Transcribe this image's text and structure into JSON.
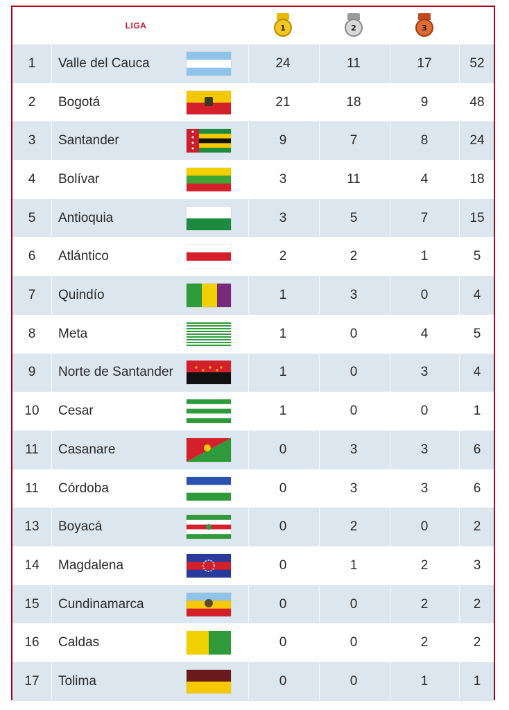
{
  "header": {
    "liga_label": "LIGA",
    "medals": [
      {
        "name": "gold-medal-icon",
        "number": "1",
        "ribbon": "#e9b800",
        "disc": "#f3c623",
        "border": "#b88a00"
      },
      {
        "name": "silver-medal-icon",
        "number": "2",
        "ribbon": "#9a9a9a",
        "disc": "#d8d8d8",
        "border": "#8a8a8a"
      },
      {
        "name": "bronze-medal-icon",
        "number": "3",
        "ribbon": "#c44a1c",
        "disc": "#e06a34",
        "border": "#9e3a12"
      }
    ]
  },
  "colors": {
    "border": "#b0001e",
    "stripe": "#dce6ee",
    "plain": "#ffffff"
  },
  "rows": [
    {
      "rank": "1",
      "name": "Valle del Cauca",
      "flag": "valle",
      "gold": "24",
      "silver": "11",
      "bronze": "17",
      "total": "52"
    },
    {
      "rank": "2",
      "name": "Bogotá",
      "flag": "bogota",
      "gold": "21",
      "silver": "18",
      "bronze": "9",
      "total": "48"
    },
    {
      "rank": "3",
      "name": "Santander",
      "flag": "santander",
      "gold": "9",
      "silver": "7",
      "bronze": "8",
      "total": "24"
    },
    {
      "rank": "4",
      "name": "Bolívar",
      "flag": "bolivar",
      "gold": "3",
      "silver": "11",
      "bronze": "4",
      "total": "18"
    },
    {
      "rank": "5",
      "name": "Antioquia",
      "flag": "antioquia",
      "gold": "3",
      "silver": "5",
      "bronze": "7",
      "total": "15"
    },
    {
      "rank": "6",
      "name": "Atlántico",
      "flag": "atlantico",
      "gold": "2",
      "silver": "2",
      "bronze": "1",
      "total": "5"
    },
    {
      "rank": "7",
      "name": "Quindío",
      "flag": "quindio",
      "gold": "1",
      "silver": "3",
      "bronze": "0",
      "total": "4"
    },
    {
      "rank": "8",
      "name": "Meta",
      "flag": "meta",
      "gold": "1",
      "silver": "0",
      "bronze": "4",
      "total": "5"
    },
    {
      "rank": "9",
      "name": "Norte de Santander",
      "flag": "norte",
      "gold": "1",
      "silver": "0",
      "bronze": "3",
      "total": "4"
    },
    {
      "rank": "10",
      "name": "Cesar",
      "flag": "cesar",
      "gold": "1",
      "silver": "0",
      "bronze": "0",
      "total": "1"
    },
    {
      "rank": "11",
      "name": "Casanare",
      "flag": "casanare",
      "gold": "0",
      "silver": "3",
      "bronze": "3",
      "total": "6"
    },
    {
      "rank": "11",
      "name": "Córdoba",
      "flag": "cordoba",
      "gold": "0",
      "silver": "3",
      "bronze": "3",
      "total": "6"
    },
    {
      "rank": "13",
      "name": "Boyacá",
      "flag": "boyaca",
      "gold": "0",
      "silver": "2",
      "bronze": "0",
      "total": "2"
    },
    {
      "rank": "14",
      "name": "Magdalena",
      "flag": "magdalena",
      "gold": "0",
      "silver": "1",
      "bronze": "2",
      "total": "3"
    },
    {
      "rank": "15",
      "name": "Cundinamarca",
      "flag": "cundinamarca",
      "gold": "0",
      "silver": "0",
      "bronze": "2",
      "total": "2"
    },
    {
      "rank": "16",
      "name": "Caldas",
      "flag": "caldas",
      "gold": "0",
      "silver": "0",
      "bronze": "2",
      "total": "2"
    },
    {
      "rank": "17",
      "name": "Tolima",
      "flag": "tolima",
      "gold": "0",
      "silver": "0",
      "bronze": "1",
      "total": "1"
    }
  ]
}
